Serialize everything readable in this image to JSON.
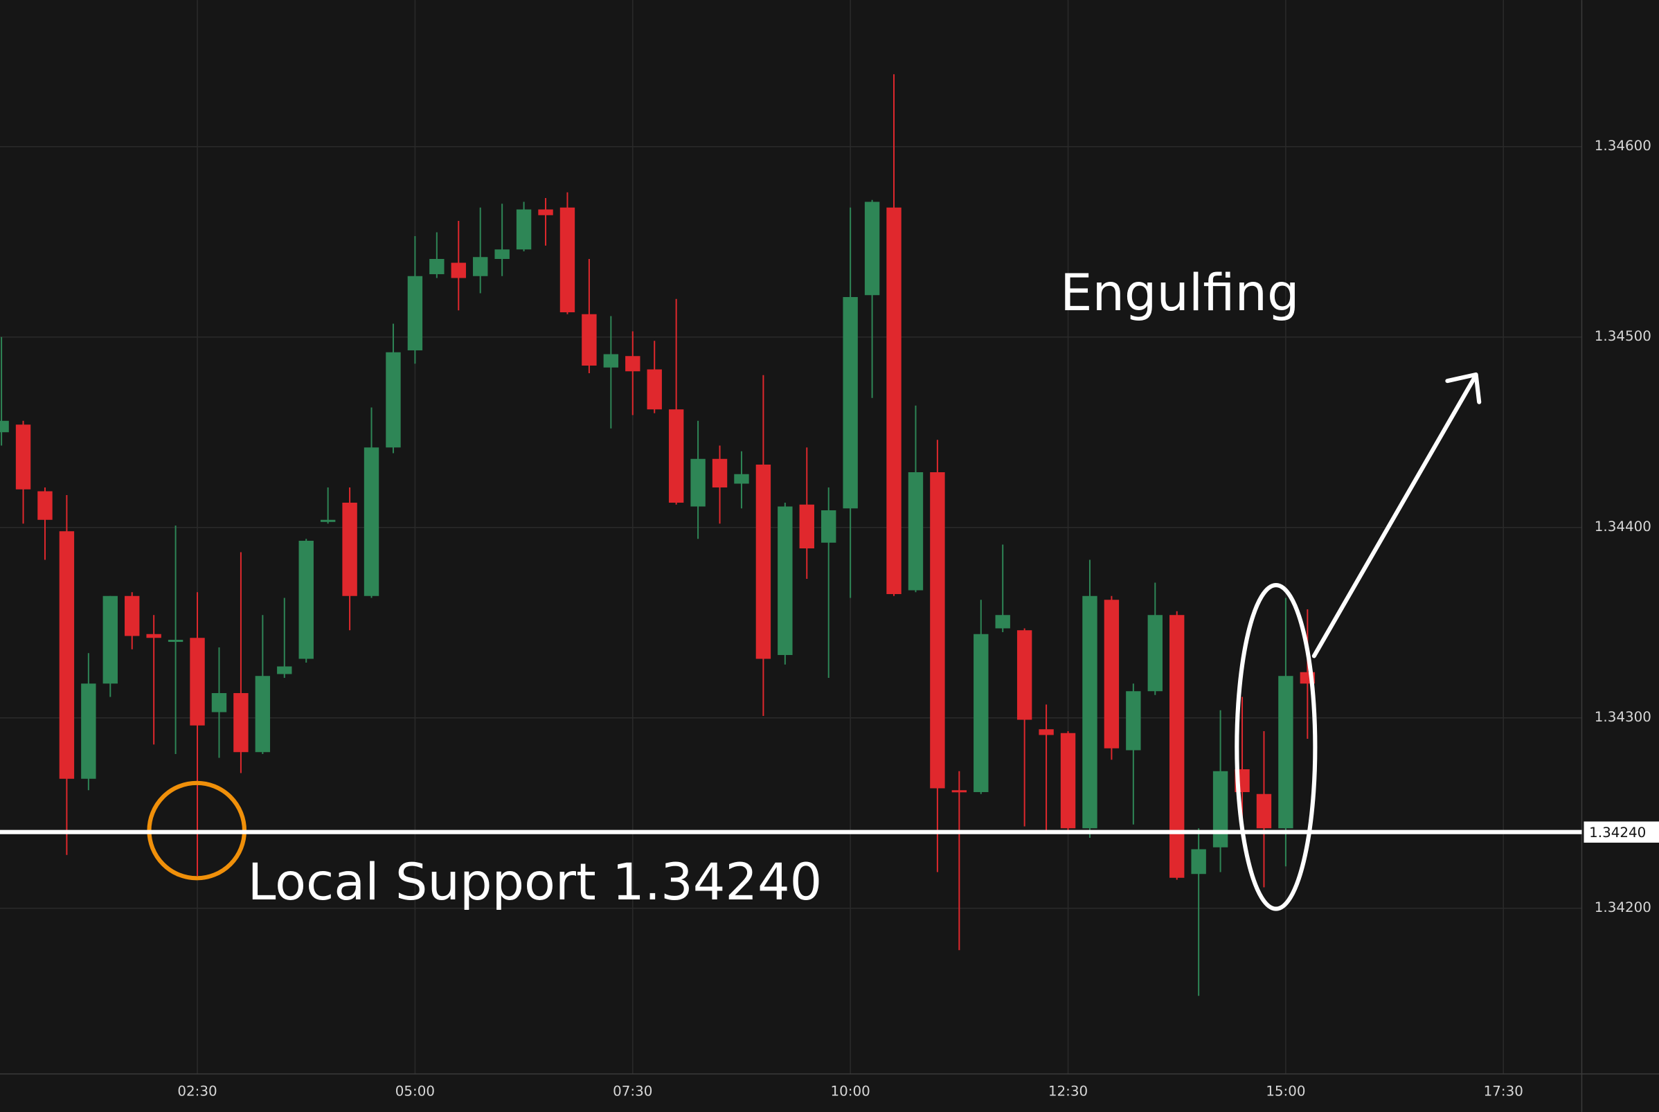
{
  "chart_data": {
    "type": "candlestick",
    "up_color": "#2e8656",
    "down_color": "#e0282d",
    "grid": true,
    "x": [
      "00:15",
      "00:30",
      "00:45",
      "01:00",
      "01:15",
      "01:30",
      "01:45",
      "02:00",
      "02:15",
      "02:30",
      "02:45",
      "03:00",
      "03:15",
      "03:30",
      "03:45",
      "04:00",
      "04:15",
      "04:30",
      "04:45",
      "05:00",
      "05:15",
      "05:30",
      "05:45",
      "06:00",
      "06:15",
      "06:30",
      "06:45",
      "07:00",
      "07:15",
      "07:30",
      "07:45",
      "08:00",
      "08:15",
      "08:30",
      "08:45",
      "09:00",
      "09:15",
      "09:30",
      "09:45",
      "10:00",
      "10:15",
      "10:30",
      "10:45",
      "11:00",
      "11:15",
      "11:30",
      "11:45",
      "12:00",
      "12:15",
      "12:30",
      "12:45",
      "13:00",
      "13:15",
      "13:30",
      "13:45",
      "14:00",
      "14:15",
      "14:30",
      "14:45",
      "15:00",
      "15:15"
    ],
    "open": [
      1.3445,
      1.34454,
      1.34419,
      1.34398,
      1.34268,
      1.34318,
      1.34364,
      1.34344,
      1.3434,
      1.34342,
      1.34303,
      1.34313,
      1.34282,
      1.34323,
      1.34331,
      1.34403,
      1.34413,
      1.34364,
      1.34442,
      1.34493,
      1.34533,
      1.34539,
      1.34532,
      1.34541,
      1.34546,
      1.34567,
      1.34568,
      1.34512,
      1.34484,
      1.3449,
      1.34483,
      1.34462,
      1.34411,
      1.34436,
      1.34423,
      1.34433,
      1.34333,
      1.34412,
      1.34392,
      1.3441,
      1.34522,
      1.34568,
      1.34367,
      1.34429,
      1.34262,
      1.34261,
      1.34347,
      1.34346,
      1.34294,
      1.34292,
      1.34242,
      1.34362,
      1.34283,
      1.34314,
      1.34354,
      1.34218,
      1.34232,
      1.34273,
      1.3426,
      1.34242,
      1.34324
    ],
    "high": [
      1.345,
      1.34456,
      1.34421,
      1.34417,
      1.34334,
      1.34364,
      1.34366,
      1.34354,
      1.34401,
      1.34366,
      1.34337,
      1.34387,
      1.34354,
      1.34363,
      1.34394,
      1.34421,
      1.34421,
      1.34463,
      1.34507,
      1.34553,
      1.34555,
      1.34561,
      1.34568,
      1.3457,
      1.34571,
      1.34573,
      1.34576,
      1.34541,
      1.34511,
      1.34503,
      1.34498,
      1.3452,
      1.34456,
      1.34443,
      1.3444,
      1.3448,
      1.34413,
      1.34442,
      1.34421,
      1.34568,
      1.34572,
      1.34638,
      1.34464,
      1.34446,
      1.34272,
      1.34362,
      1.34391,
      1.34347,
      1.34307,
      1.34293,
      1.34383,
      1.34364,
      1.34318,
      1.34371,
      1.34356,
      1.34242,
      1.34304,
      1.34311,
      1.34293,
      1.34363,
      1.34357
    ],
    "low": [
      1.34443,
      1.34402,
      1.34383,
      1.34228,
      1.34262,
      1.34311,
      1.34336,
      1.34286,
      1.34281,
      1.34217,
      1.34279,
      1.34271,
      1.34281,
      1.34321,
      1.34329,
      1.34402,
      1.34346,
      1.34363,
      1.34439,
      1.34486,
      1.34531,
      1.34514,
      1.34523,
      1.34532,
      1.34545,
      1.34548,
      1.34512,
      1.34481,
      1.34452,
      1.34459,
      1.3446,
      1.34412,
      1.34394,
      1.34402,
      1.3441,
      1.34301,
      1.34328,
      1.34373,
      1.34321,
      1.34363,
      1.34468,
      1.34364,
      1.34366,
      1.34219,
      1.34178,
      1.3426,
      1.34345,
      1.34243,
      1.34241,
      1.34241,
      1.34237,
      1.34278,
      1.34244,
      1.34312,
      1.34215,
      1.34154,
      1.34219,
      1.34244,
      1.34211,
      1.34222,
      1.34289
    ],
    "close": [
      1.34456,
      1.3442,
      1.34404,
      1.34268,
      1.34318,
      1.34364,
      1.34343,
      1.34342,
      1.34341,
      1.34296,
      1.34313,
      1.34282,
      1.34322,
      1.34327,
      1.34393,
      1.34404,
      1.34364,
      1.34442,
      1.34492,
      1.34532,
      1.34541,
      1.34531,
      1.34542,
      1.34546,
      1.34567,
      1.34564,
      1.34513,
      1.34485,
      1.34491,
      1.34482,
      1.34462,
      1.34413,
      1.34436,
      1.34421,
      1.34428,
      1.34331,
      1.34411,
      1.34389,
      1.34409,
      1.34521,
      1.34571,
      1.34365,
      1.34429,
      1.34263,
      1.34261,
      1.34344,
      1.34354,
      1.34299,
      1.34291,
      1.34242,
      1.34364,
      1.34284,
      1.34314,
      1.34354,
      1.34216,
      1.34231,
      1.34272,
      1.34261,
      1.34242,
      1.34322,
      1.34318
    ],
    "xlim": [
      "00:14",
      "18:24"
    ],
    "xticks": [
      "02:30",
      "05:00",
      "07:30",
      "10:00",
      "12:30",
      "15:00",
      "17:30"
    ],
    "ylim": [
      1.34113,
      1.34677
    ],
    "yticks": [
      {
        "value": 1.342,
        "label": "1.34200"
      },
      {
        "value": 1.343,
        "label": "1.34300"
      },
      {
        "value": 1.344,
        "label": "1.34400"
      },
      {
        "value": 1.345,
        "label": "1.34500"
      },
      {
        "value": 1.346,
        "label": "1.34600"
      }
    ],
    "support_line": {
      "value": 1.3424,
      "label": "1.34240"
    },
    "annotations": [
      "Engulfing",
      "Local Support 1.34240"
    ]
  }
}
